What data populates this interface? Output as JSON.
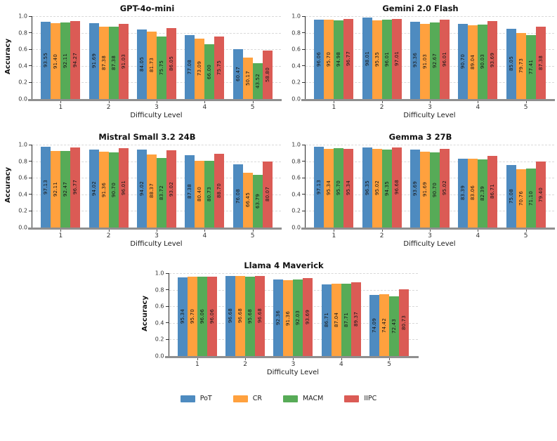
{
  "figure": {
    "background": "#ffffff",
    "xlabel": "Difficulty Level",
    "ylabel": "Accuracy",
    "ytick_labels": [
      "0.0",
      "0.2",
      "0.4",
      "0.6",
      "0.8",
      "1.0"
    ]
  },
  "colors": {
    "PoT": "#4E8BC0",
    "CR": "#FFA13E",
    "MACM": "#57AB57",
    "IIPC": "#DB5B55",
    "grid": "#d9d9d9",
    "left_spine": "#2a2a2a",
    "bottom_spine": "#8f8f8f"
  },
  "legend": {
    "entries": [
      {
        "label": "PoT",
        "color": "#4E8BC0"
      },
      {
        "label": "CR",
        "color": "#FFA13E"
      },
      {
        "label": "MACM",
        "color": "#57AB57"
      },
      {
        "label": "IIPC",
        "color": "#DB5B55"
      }
    ]
  },
  "chart_data": [
    {
      "type": "bar",
      "title": "GPT-4o-mini",
      "categories": [
        "1",
        "2",
        "3",
        "4",
        "5"
      ],
      "xlabel": "Difficulty Level",
      "ylabel": "Accuracy",
      "ylim": [
        0,
        1.0
      ],
      "yticks": [
        0.0,
        0.2,
        0.4,
        0.6,
        0.8,
        1.0
      ],
      "grid": "horizontal-dashed",
      "show_ylabel": true,
      "series": [
        {
          "name": "PoT",
          "values": [
            93.55,
            91.69,
            84.05,
            77.08,
            60.47
          ]
        },
        {
          "name": "CR",
          "values": [
            91.4,
            87.38,
            81.73,
            73.09,
            50.17
          ]
        },
        {
          "name": "MACM",
          "values": [
            92.11,
            87.38,
            75.75,
            66.0,
            43.52
          ]
        },
        {
          "name": "IIPC",
          "values": [
            94.27,
            91.03,
            86.05,
            75.75,
            58.8
          ]
        }
      ]
    },
    {
      "type": "bar",
      "title": "Gemini 2.0 Flash",
      "categories": [
        "1",
        "2",
        "3",
        "4",
        "5"
      ],
      "xlabel": "Difficulty Level",
      "ylabel": "Accuracy",
      "ylim": [
        0,
        1.0
      ],
      "yticks": [
        0.0,
        0.2,
        0.4,
        0.6,
        0.8,
        1.0
      ],
      "grid": "horizontal-dashed",
      "show_ylabel": false,
      "series": [
        {
          "name": "PoT",
          "values": [
            96.06,
            98.01,
            93.36,
            90.7,
            85.05
          ]
        },
        {
          "name": "CR",
          "values": [
            95.7,
            95.35,
            91.03,
            89.04,
            79.73
          ]
        },
        {
          "name": "MACM",
          "values": [
            94.98,
            96.01,
            92.67,
            90.03,
            77.41
          ]
        },
        {
          "name": "IIPC",
          "values": [
            96.77,
            97.01,
            96.01,
            93.69,
            87.38
          ]
        }
      ]
    },
    {
      "type": "bar",
      "title": "Mistral Small 3.2 24B",
      "categories": [
        "1",
        "2",
        "3",
        "4",
        "5"
      ],
      "xlabel": "Difficulty Level",
      "ylabel": "Accuracy",
      "ylim": [
        0,
        1.0
      ],
      "yticks": [
        0.0,
        0.2,
        0.4,
        0.6,
        0.8,
        1.0
      ],
      "grid": "horizontal-dashed",
      "show_ylabel": true,
      "series": [
        {
          "name": "PoT",
          "values": [
            97.13,
            94.02,
            94.02,
            87.38,
            76.08
          ]
        },
        {
          "name": "CR",
          "values": [
            92.11,
            91.36,
            88.37,
            80.4,
            66.45
          ]
        },
        {
          "name": "MACM",
          "values": [
            92.47,
            90.7,
            83.72,
            80.73,
            63.79
          ]
        },
        {
          "name": "IIPC",
          "values": [
            96.77,
            96.01,
            93.02,
            88.7,
            80.07
          ]
        }
      ]
    },
    {
      "type": "bar",
      "title": "Gemma 3 27B",
      "categories": [
        "1",
        "2",
        "3",
        "4",
        "5"
      ],
      "xlabel": "Difficulty Level",
      "ylabel": "Accuracy",
      "ylim": [
        0,
        1.0
      ],
      "yticks": [
        0.0,
        0.2,
        0.4,
        0.6,
        0.8,
        1.0
      ],
      "grid": "horizontal-dashed",
      "show_ylabel": false,
      "series": [
        {
          "name": "PoT",
          "values": [
            97.13,
            96.35,
            93.69,
            83.39,
            75.08
          ]
        },
        {
          "name": "CR",
          "values": [
            95.34,
            95.02,
            91.69,
            83.06,
            70.76
          ]
        },
        {
          "name": "MACM",
          "values": [
            95.7,
            94.35,
            90.7,
            82.39,
            71.1
          ]
        },
        {
          "name": "IIPC",
          "values": [
            95.34,
            96.68,
            95.02,
            86.71,
            79.4
          ]
        }
      ]
    },
    {
      "type": "bar",
      "title": "Llama 4 Maverick",
      "categories": [
        "1",
        "2",
        "3",
        "4",
        "5"
      ],
      "xlabel": "Difficulty Level",
      "ylabel": "Accuracy",
      "ylim": [
        0,
        1.0
      ],
      "yticks": [
        0.0,
        0.2,
        0.4,
        0.6,
        0.8,
        1.0
      ],
      "grid": "horizontal-dashed",
      "show_ylabel": true,
      "series": [
        {
          "name": "PoT",
          "values": [
            95.34,
            96.68,
            92.36,
            86.71,
            74.09
          ]
        },
        {
          "name": "CR",
          "values": [
            95.7,
            96.68,
            91.36,
            87.04,
            74.42
          ]
        },
        {
          "name": "MACM",
          "values": [
            96.06,
            95.68,
            92.03,
            87.71,
            72.43
          ]
        },
        {
          "name": "IIPC",
          "values": [
            96.06,
            96.68,
            93.69,
            89.37,
            80.73
          ]
        }
      ]
    }
  ]
}
